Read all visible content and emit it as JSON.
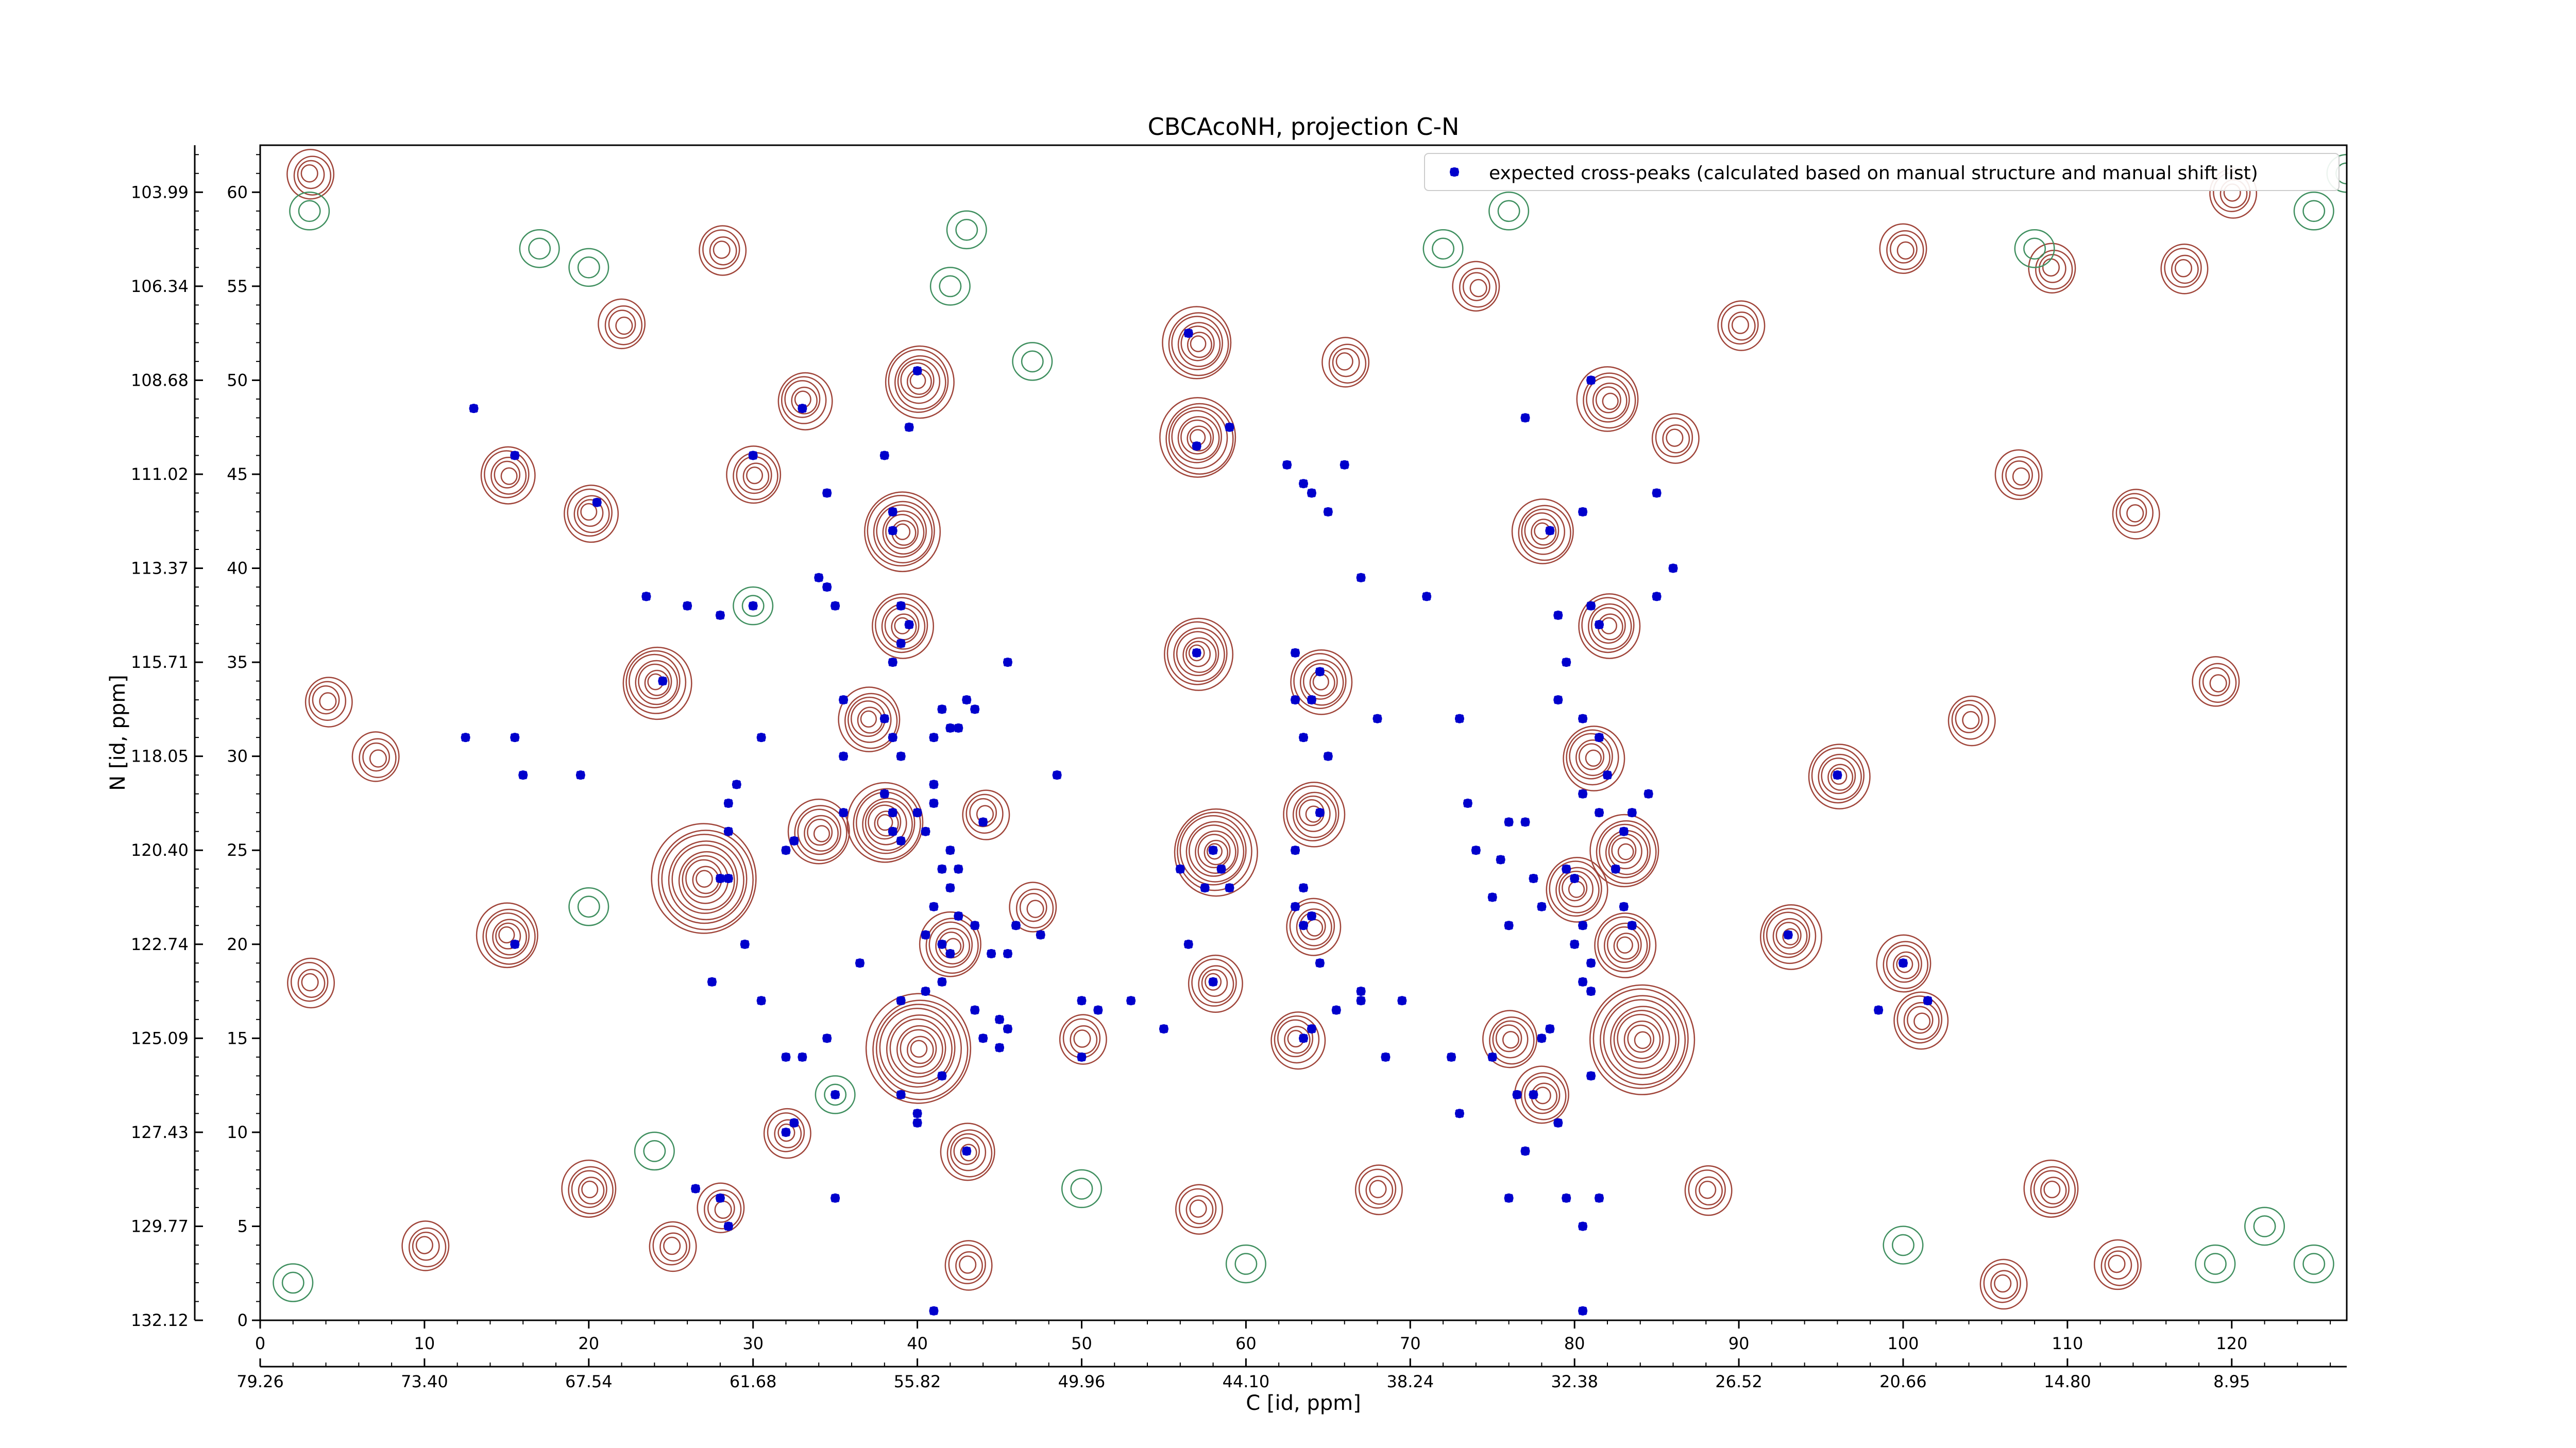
{
  "chart_data": {
    "type": "scatter",
    "title": "CBCAcoNH, projection C-N",
    "xlabel": "C [id, ppm]",
    "ylabel": "N [id, ppm]",
    "xlim": [
      0,
      127
    ],
    "ylim": [
      0,
      62.5
    ],
    "x_ticks": [
      0,
      10,
      20,
      30,
      40,
      50,
      60,
      70,
      80,
      90,
      100,
      110,
      120
    ],
    "y_ticks": [
      0,
      5,
      10,
      15,
      20,
      25,
      30,
      35,
      40,
      45,
      50,
      55,
      60
    ],
    "x_ppm_ticks": [
      "79.26",
      "73.40",
      "67.54",
      "61.68",
      "55.82",
      "49.96",
      "44.10",
      "38.24",
      "32.38",
      "26.52",
      "20.66",
      "14.80",
      "8.95"
    ],
    "y_ppm_ticks": [
      "132.12",
      "129.77",
      "127.43",
      "125.09",
      "122.74",
      "120.40",
      "118.05",
      "115.71",
      "113.37",
      "111.02",
      "108.68",
      "106.34",
      "103.99"
    ],
    "legend": {
      "position": "top-right",
      "label": "expected cross-peaks (calculated based on manual structure and manual shift list)"
    },
    "marker_color": "#0000cc",
    "contour_positive_color": "#a0453a",
    "contour_negative_color": "#3f8f5f",
    "contour_peaks": [
      {
        "x": 27,
        "y": 23.5,
        "a": 12
      },
      {
        "x": 40,
        "y": 14.5,
        "a": 12
      },
      {
        "x": 84,
        "y": 15,
        "a": 12
      },
      {
        "x": 58,
        "y": 25,
        "a": 9
      },
      {
        "x": 38,
        "y": 26.5,
        "a": 8
      },
      {
        "x": 39,
        "y": 42,
        "a": 8
      },
      {
        "x": 40,
        "y": 50,
        "a": 7
      },
      {
        "x": 57,
        "y": 52,
        "a": 7
      },
      {
        "x": 57,
        "y": 47,
        "a": 8
      },
      {
        "x": 57,
        "y": 35.5,
        "a": 7
      },
      {
        "x": 24,
        "y": 34,
        "a": 7
      },
      {
        "x": 15,
        "y": 20.5,
        "a": 6
      },
      {
        "x": 64.5,
        "y": 34,
        "a": 6
      },
      {
        "x": 64,
        "y": 27,
        "a": 6
      },
      {
        "x": 82,
        "y": 49,
        "a": 6
      },
      {
        "x": 78,
        "y": 42,
        "a": 6
      },
      {
        "x": 82,
        "y": 37,
        "a": 6
      },
      {
        "x": 81,
        "y": 30,
        "a": 6
      },
      {
        "x": 83,
        "y": 25,
        "a": 7
      },
      {
        "x": 83,
        "y": 20,
        "a": 6
      },
      {
        "x": 80,
        "y": 23,
        "a": 6
      },
      {
        "x": 42,
        "y": 20,
        "a": 6
      },
      {
        "x": 43,
        "y": 9,
        "a": 5
      },
      {
        "x": 96,
        "y": 29,
        "a": 6
      },
      {
        "x": 93,
        "y": 20.5,
        "a": 6
      },
      {
        "x": 100,
        "y": 19,
        "a": 5
      },
      {
        "x": 101,
        "y": 16,
        "a": 5
      },
      {
        "x": 58,
        "y": 18,
        "a": 5
      },
      {
        "x": 34,
        "y": 26,
        "a": 6
      },
      {
        "x": 37,
        "y": 32,
        "a": 6
      },
      {
        "x": 39,
        "y": 37,
        "a": 6
      },
      {
        "x": 33,
        "y": 49,
        "a": 5
      },
      {
        "x": 30,
        "y": 45,
        "a": 5
      },
      {
        "x": 15,
        "y": 45,
        "a": 5
      },
      {
        "x": 20,
        "y": 43,
        "a": 5
      },
      {
        "x": 78,
        "y": 12,
        "a": 5
      },
      {
        "x": 76,
        "y": 15,
        "a": 5
      },
      {
        "x": 64,
        "y": 21,
        "a": 5
      },
      {
        "x": 63,
        "y": 15,
        "a": 5
      },
      {
        "x": 28,
        "y": 6,
        "a": 4
      },
      {
        "x": 32,
        "y": 10,
        "a": 4
      },
      {
        "x": 57,
        "y": 6,
        "a": 4
      },
      {
        "x": 109,
        "y": 7,
        "a": 5
      },
      {
        "x": 113,
        "y": 3,
        "a": 4
      },
      {
        "x": 106,
        "y": 2,
        "a": 4
      },
      {
        "x": 114,
        "y": 43,
        "a": 4
      },
      {
        "x": 107,
        "y": 45,
        "a": 4
      },
      {
        "x": 120,
        "y": 60,
        "a": 4
      },
      {
        "x": 28,
        "y": 57,
        "a": 4
      },
      {
        "x": 22,
        "y": 53,
        "a": 4
      },
      {
        "x": 3,
        "y": 61,
        "a": 4
      },
      {
        "x": 117,
        "y": 56,
        "a": 4
      },
      {
        "x": 104,
        "y": 32,
        "a": 4
      },
      {
        "x": 119,
        "y": 34,
        "a": 4
      },
      {
        "x": 68,
        "y": 7,
        "a": 4
      },
      {
        "x": 88,
        "y": 7,
        "a": 4
      },
      {
        "x": 20,
        "y": 7,
        "a": 5
      },
      {
        "x": 10,
        "y": 4,
        "a": 4
      },
      {
        "x": 25,
        "y": 4,
        "a": 4
      },
      {
        "x": 4,
        "y": 33,
        "a": 4
      },
      {
        "x": 7,
        "y": 30,
        "a": 4
      },
      {
        "x": 3,
        "y": 18,
        "a": 4
      },
      {
        "x": 90,
        "y": 53,
        "a": 4
      },
      {
        "x": 74,
        "y": 55,
        "a": 4
      },
      {
        "x": 66,
        "y": 51,
        "a": 4
      },
      {
        "x": 43,
        "y": 3,
        "a": 4
      },
      {
        "x": 44,
        "y": 27,
        "a": 4
      },
      {
        "x": 47,
        "y": 22,
        "a": 4
      },
      {
        "x": 50,
        "y": 15,
        "a": 4
      },
      {
        "x": 86,
        "y": 47,
        "a": 4
      },
      {
        "x": 100,
        "y": 57,
        "a": 4
      },
      {
        "x": 109,
        "y": 56,
        "a": 4
      }
    ],
    "contour_negative": [
      {
        "x": 20,
        "y": 56
      },
      {
        "x": 17,
        "y": 57
      },
      {
        "x": 43,
        "y": 58
      },
      {
        "x": 47,
        "y": 51
      },
      {
        "x": 42,
        "y": 55
      },
      {
        "x": 72,
        "y": 57
      },
      {
        "x": 76,
        "y": 59
      },
      {
        "x": 108,
        "y": 57
      },
      {
        "x": 122,
        "y": 5
      },
      {
        "x": 119,
        "y": 3
      },
      {
        "x": 60,
        "y": 3
      },
      {
        "x": 50,
        "y": 7
      },
      {
        "x": 24,
        "y": 9
      },
      {
        "x": 35,
        "y": 12
      },
      {
        "x": 30,
        "y": 38
      },
      {
        "x": 20,
        "y": 22
      },
      {
        "x": 100,
        "y": 4
      },
      {
        "x": 2,
        "y": 2
      },
      {
        "x": 125,
        "y": 3
      },
      {
        "x": 3,
        "y": 59
      },
      {
        "x": 127,
        "y": 61
      },
      {
        "x": 125,
        "y": 59
      }
    ],
    "series": [
      {
        "name": "expected cross-peaks (calculated based on manual structure and manual shift list)",
        "points": [
          [
            13,
            48.5
          ],
          [
            15.5,
            46
          ],
          [
            20.5,
            43.5
          ],
          [
            12.5,
            31
          ],
          [
            15.5,
            31
          ],
          [
            16,
            29
          ],
          [
            19.5,
            29
          ],
          [
            15.5,
            20
          ],
          [
            24.5,
            34
          ],
          [
            23.5,
            38.5
          ],
          [
            26,
            38
          ],
          [
            28,
            37.5
          ],
          [
            30,
            38
          ],
          [
            28,
            23.5
          ],
          [
            28.5,
            23.5
          ],
          [
            28.5,
            26
          ],
          [
            28.5,
            27.5
          ],
          [
            29,
            28.5
          ],
          [
            29.5,
            20
          ],
          [
            27.5,
            18
          ],
          [
            30.5,
            17
          ],
          [
            30.5,
            31
          ],
          [
            32,
            25
          ],
          [
            32.5,
            25.5
          ],
          [
            32,
            14
          ],
          [
            33,
            14
          ],
          [
            32,
            10
          ],
          [
            32.5,
            10.5
          ],
          [
            34.5,
            15
          ],
          [
            35,
            12
          ],
          [
            35,
            6.5
          ],
          [
            35.5,
            27
          ],
          [
            35.5,
            30
          ],
          [
            35.5,
            33
          ],
          [
            34,
            39.5
          ],
          [
            34.5,
            39
          ],
          [
            35,
            38
          ],
          [
            33,
            48.5
          ],
          [
            34.5,
            44
          ],
          [
            30,
            46
          ],
          [
            38,
            46
          ],
          [
            38.5,
            43
          ],
          [
            38.5,
            42
          ],
          [
            39.5,
            47.5
          ],
          [
            40,
            50.5
          ],
          [
            39,
            38
          ],
          [
            39,
            36
          ],
          [
            39.5,
            37
          ],
          [
            38,
            32
          ],
          [
            38.5,
            35
          ],
          [
            38.5,
            31
          ],
          [
            39,
            30
          ],
          [
            38.5,
            27
          ],
          [
            38,
            28
          ],
          [
            40,
            27
          ],
          [
            38.5,
            26
          ],
          [
            39,
            25.5
          ],
          [
            40.5,
            26
          ],
          [
            41,
            27.5
          ],
          [
            41,
            28.5
          ],
          [
            41,
            31
          ],
          [
            42.5,
            31.5
          ],
          [
            42,
            31.5
          ],
          [
            41.5,
            32.5
          ],
          [
            43,
            33
          ],
          [
            43.5,
            32.5
          ],
          [
            44,
            26.5
          ],
          [
            42,
            25
          ],
          [
            41.5,
            24
          ],
          [
            42.5,
            24
          ],
          [
            42,
            23
          ],
          [
            41,
            22
          ],
          [
            42.5,
            21.5
          ],
          [
            40.5,
            20.5
          ],
          [
            41.5,
            20
          ],
          [
            42,
            19.5
          ],
          [
            41.5,
            18
          ],
          [
            40.5,
            17.5
          ],
          [
            39,
            17
          ],
          [
            36.5,
            19
          ],
          [
            43.5,
            21
          ],
          [
            44.5,
            19.5
          ],
          [
            45.5,
            19.5
          ],
          [
            46,
            21
          ],
          [
            47.5,
            20.5
          ],
          [
            45,
            16
          ],
          [
            45.5,
            15.5
          ],
          [
            44,
            15
          ],
          [
            45,
            14.5
          ],
          [
            43.5,
            16.5
          ],
          [
            40,
            11
          ],
          [
            39,
            12
          ],
          [
            41.5,
            13
          ],
          [
            43,
            9
          ],
          [
            41,
            0.5
          ],
          [
            28,
            6.5
          ],
          [
            28.5,
            5
          ],
          [
            26.5,
            7
          ],
          [
            23.5,
            38.5
          ],
          [
            45.5,
            35
          ],
          [
            48.5,
            29
          ],
          [
            50,
            17
          ],
          [
            51,
            16.5
          ],
          [
            50,
            14
          ],
          [
            53,
            17
          ],
          [
            55,
            15.5
          ],
          [
            56.5,
            52.5
          ],
          [
            57,
            46.5
          ],
          [
            59,
            47.5
          ],
          [
            57,
            35.5
          ],
          [
            56,
            24
          ],
          [
            58,
            25
          ],
          [
            57.5,
            23
          ],
          [
            58.5,
            24
          ],
          [
            59,
            23
          ],
          [
            56.5,
            20
          ],
          [
            58,
            18
          ],
          [
            63,
            35.5
          ],
          [
            64.5,
            34.5
          ],
          [
            64,
            33
          ],
          [
            63.5,
            31
          ],
          [
            65,
            30
          ],
          [
            64.5,
            27
          ],
          [
            63,
            25
          ],
          [
            63.5,
            23
          ],
          [
            63,
            22
          ],
          [
            64,
            21.5
          ],
          [
            63.5,
            21
          ],
          [
            64.5,
            19
          ],
          [
            65.5,
            16.5
          ],
          [
            63.5,
            15
          ],
          [
            64,
            15.5
          ],
          [
            67,
            17.5
          ],
          [
            67,
            17
          ],
          [
            68.5,
            14
          ],
          [
            69.5,
            17
          ],
          [
            72.5,
            14
          ],
          [
            73,
            11
          ],
          [
            71,
            38.5
          ],
          [
            73,
            32
          ],
          [
            73.5,
            27.5
          ],
          [
            74,
            25
          ],
          [
            75,
            22.5
          ],
          [
            75.5,
            24.5
          ],
          [
            76,
            26.5
          ],
          [
            77,
            26.5
          ],
          [
            76,
            21
          ],
          [
            78.5,
            15.5
          ],
          [
            78,
            15
          ],
          [
            75,
            14
          ],
          [
            76.5,
            12
          ],
          [
            77.5,
            12
          ],
          [
            79,
            10.5
          ],
          [
            77,
            9
          ],
          [
            76,
            6.5
          ],
          [
            79.5,
            6.5
          ],
          [
            80.5,
            5
          ],
          [
            81.5,
            6.5
          ],
          [
            80.5,
            0.5
          ],
          [
            63.5,
            44.5
          ],
          [
            62.5,
            45.5
          ],
          [
            64,
            44
          ],
          [
            65,
            43
          ],
          [
            66,
            45.5
          ],
          [
            67,
            39.5
          ],
          [
            68,
            32
          ],
          [
            78,
            22
          ],
          [
            77.5,
            23.5
          ],
          [
            79.5,
            24
          ],
          [
            80,
            23.5
          ],
          [
            80.5,
            21
          ],
          [
            80,
            20
          ],
          [
            81,
            19
          ],
          [
            80.5,
            18
          ],
          [
            81,
            17.5
          ],
          [
            83,
            22
          ],
          [
            83.5,
            21
          ],
          [
            82.5,
            24
          ],
          [
            83,
            26
          ],
          [
            83.5,
            27
          ],
          [
            84.5,
            28
          ],
          [
            82,
            29
          ],
          [
            81.5,
            27
          ],
          [
            80.5,
            28
          ],
          [
            81.5,
            31
          ],
          [
            80.5,
            32
          ],
          [
            79,
            33
          ],
          [
            79.5,
            35
          ],
          [
            79,
            37.5
          ],
          [
            81,
            38
          ],
          [
            81.5,
            37
          ],
          [
            78.5,
            42
          ],
          [
            80.5,
            43
          ],
          [
            81,
            50
          ],
          [
            77,
            48
          ],
          [
            85,
            44
          ],
          [
            86,
            40
          ],
          [
            85,
            38.5
          ],
          [
            63,
            33
          ],
          [
            96,
            29
          ],
          [
            93,
            20.5
          ],
          [
            100,
            19
          ],
          [
            101.5,
            17
          ],
          [
            98.5,
            16.5
          ],
          [
            81,
            13
          ],
          [
            40,
            10.5
          ]
        ]
      }
    ]
  }
}
